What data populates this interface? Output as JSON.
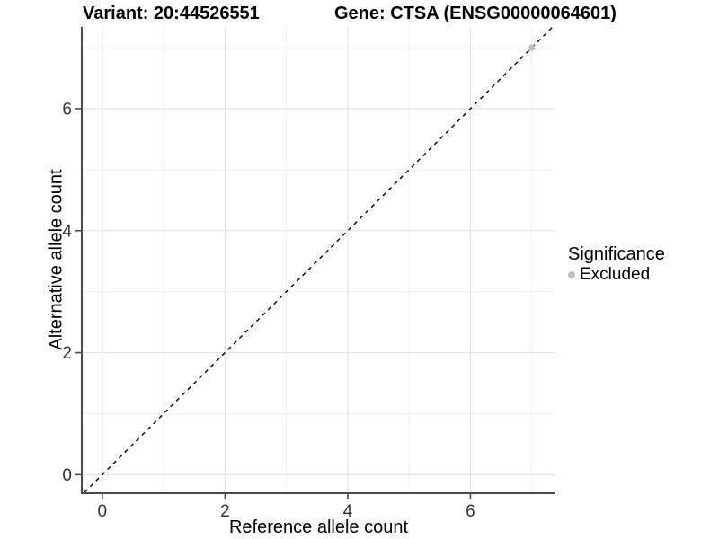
{
  "header": {
    "variant_title": "Variant: 20:44526551",
    "gene_title": "Gene: CTSA (ENSG00000064601)"
  },
  "chart_data": {
    "type": "scatter",
    "xlabel": "Reference allele count",
    "ylabel": "Alternative allele count",
    "xlim": [
      -0.32,
      7.37
    ],
    "ylim": [
      -0.29,
      7.34
    ],
    "xticks": [
      0,
      2,
      4,
      6
    ],
    "yticks": [
      0,
      2,
      4,
      6
    ],
    "x_minor_gridlines": [
      1,
      3,
      5,
      7
    ],
    "y_minor_gridlines": [
      1,
      3,
      5,
      7
    ],
    "grid": true,
    "identity_line": {
      "equation": "y = x",
      "style": "dashed",
      "color": "#000000"
    },
    "series": [
      {
        "name": "Excluded",
        "color": "#bfbfbf",
        "points": [
          {
            "x": 7,
            "y": 7
          }
        ]
      }
    ],
    "legend": {
      "title": "Significance",
      "position": "right",
      "entries": [
        {
          "label": "Excluded",
          "color": "#bfbfbf"
        }
      ]
    },
    "colors": {
      "grid_major": "#e4e4e4",
      "grid_minor": "#f0f0f0",
      "axis_line": "#4a4a4a",
      "tick_label": "#333333"
    }
  }
}
